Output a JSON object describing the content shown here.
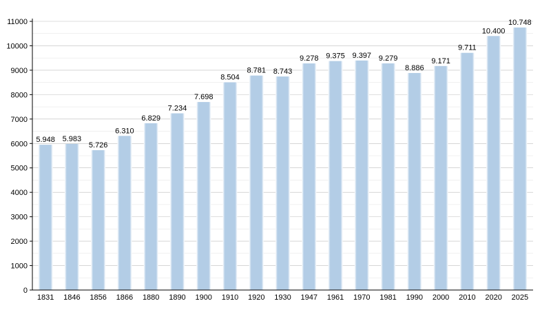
{
  "chart_data": {
    "type": "bar",
    "title": "",
    "xlabel": "",
    "ylabel": "",
    "categories": [
      "1831",
      "1846",
      "1856",
      "1866",
      "1880",
      "1890",
      "1900",
      "1910",
      "1920",
      "1930",
      "1947",
      "1961",
      "1970",
      "1981",
      "1990",
      "2000",
      "2010",
      "2020",
      "2025"
    ],
    "values": [
      5948,
      5983,
      5726,
      6310,
      6829,
      7234,
      7698,
      8504,
      8781,
      8743,
      9278,
      9375,
      9397,
      9279,
      8886,
      9171,
      9711,
      10400,
      10748
    ],
    "value_labels": [
      "5.948",
      "5.983",
      "5.726",
      "6.310",
      "6.829",
      "7.234",
      "7.698",
      "8.504",
      "8.781",
      "8.743",
      "9.278",
      "9.375",
      "9.397",
      "9.279",
      "8.886",
      "9.171",
      "9.711",
      "10.400",
      "10.748"
    ],
    "ylim": [
      0,
      11000
    ],
    "y_ticks": [
      "0",
      "1000",
      "2000",
      "3000",
      "4000",
      "5000",
      "6000",
      "7000",
      "8000",
      "9000",
      "10000",
      "11000"
    ],
    "grid": true,
    "legend": "none",
    "colors": {
      "bar": "#b3cde6",
      "bar_edge": "#ffffff",
      "grid": "#bdbdbd",
      "axis": "#000000"
    }
  }
}
